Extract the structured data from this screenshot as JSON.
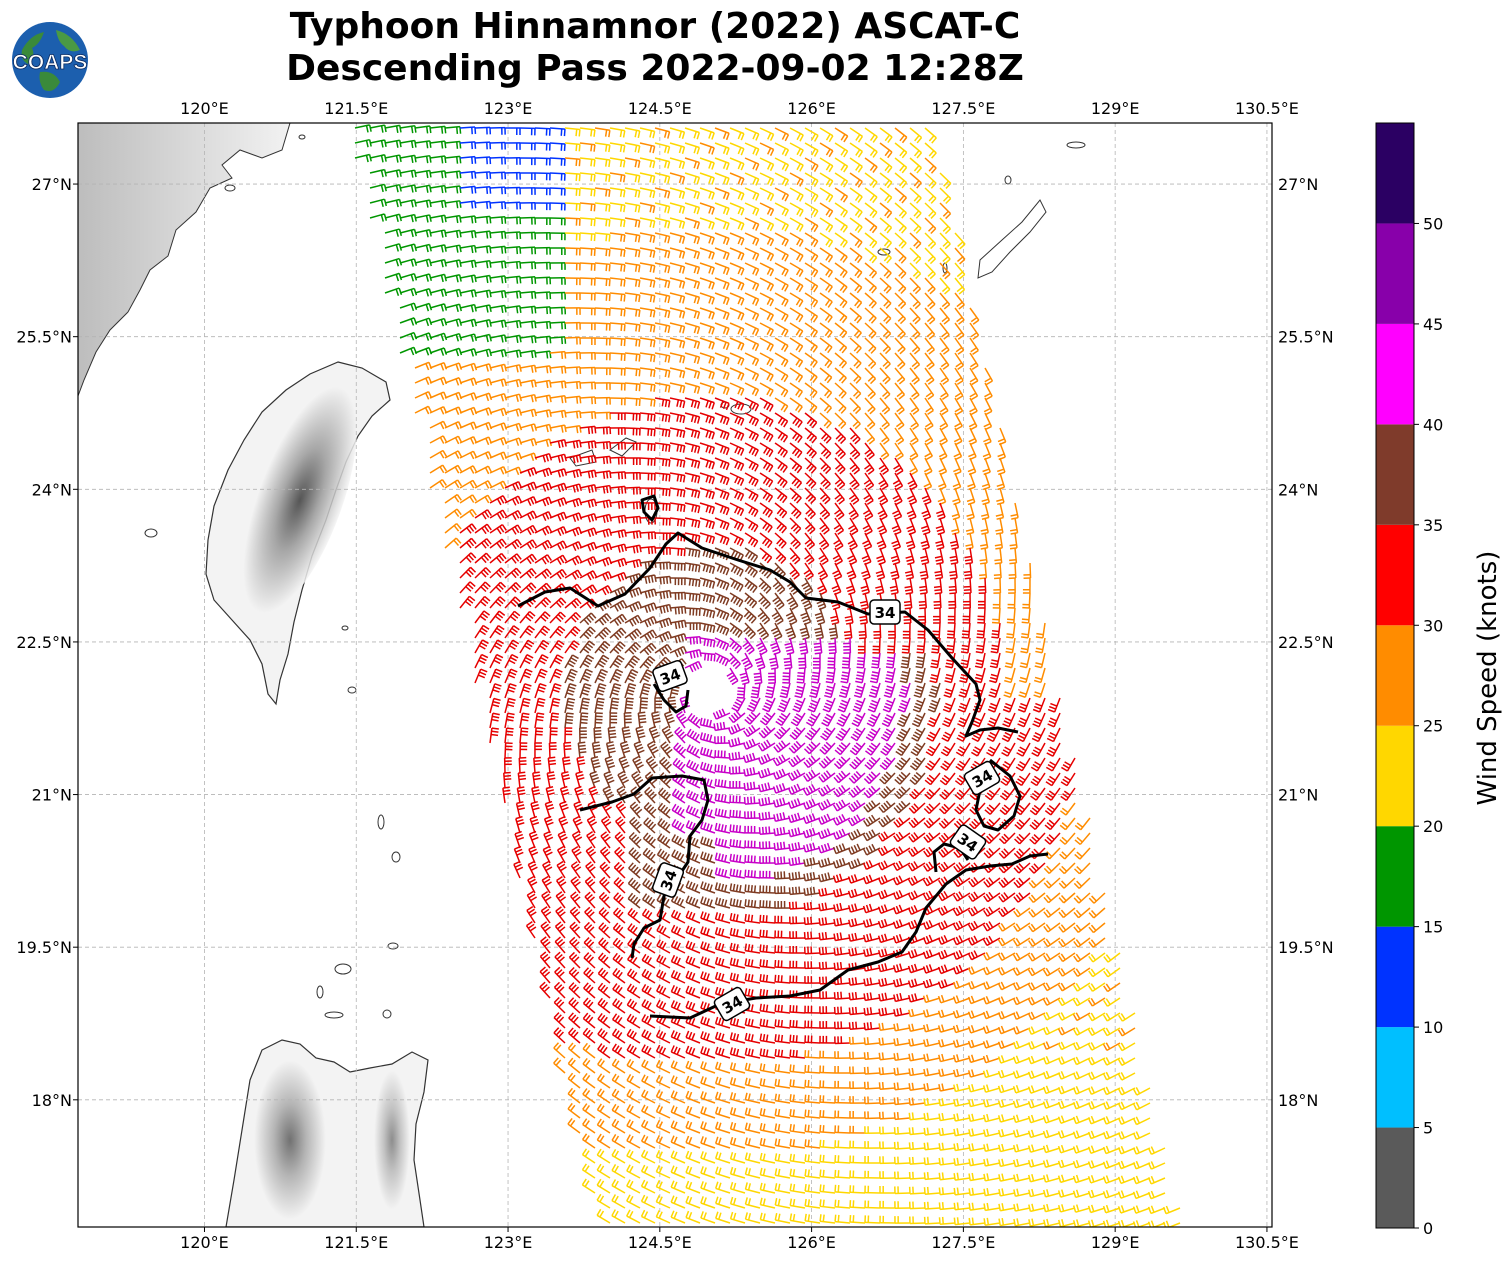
{
  "title_line1": "Typhoon Hinnamnor (2022) ASCAT-C",
  "title_line2": "Descending Pass 2022-09-02 12:28Z",
  "logo_text": "COAPS",
  "map": {
    "lon_range": [
      118.75,
      130.55
    ],
    "lat_range": [
      16.75,
      27.6
    ],
    "lon_ticks": [
      "120°E",
      "121.5°E",
      "123°E",
      "124.5°E",
      "126°E",
      "127.5°E",
      "129°E",
      "130.5°E"
    ],
    "lat_ticks": [
      "27°N",
      "25.5°N",
      "24°N",
      "22.5°N",
      "21°N",
      "19.5°N",
      "18°N"
    ],
    "grid": true,
    "contour_value": "34",
    "contour_labels": [
      "34",
      "34",
      "34",
      "34",
      "34",
      "34"
    ],
    "storm_center": {
      "lon": 125.0,
      "lat": 22.0
    },
    "barb_colors": {
      "yellow": "#ffd700",
      "orange": "#ff8c00",
      "green": "#009600",
      "blue": "#0033ff",
      "red": "#e60000",
      "brown": "#7f3b22",
      "purple": "#c800c8"
    }
  },
  "colorbar": {
    "label": "Wind Speed (knots)",
    "tick_labels": [
      "0",
      "5",
      "10",
      "15",
      "20",
      "25",
      "30",
      "35",
      "40",
      "45",
      "50"
    ],
    "bins": [
      {
        "min": 0,
        "max": 5,
        "color": "#5a5a5a"
      },
      {
        "min": 5,
        "max": 10,
        "color": "#00bfff"
      },
      {
        "min": 10,
        "max": 15,
        "color": "#0033ff"
      },
      {
        "min": 15,
        "max": 20,
        "color": "#009600"
      },
      {
        "min": 20,
        "max": 25,
        "color": "#ffd700"
      },
      {
        "min": 25,
        "max": 30,
        "color": "#ff8c00"
      },
      {
        "min": 30,
        "max": 35,
        "color": "#ff0000"
      },
      {
        "min": 35,
        "max": 40,
        "color": "#7f3b2b"
      },
      {
        "min": 40,
        "max": 45,
        "color": "#ff00ff"
      },
      {
        "min": 45,
        "max": 50,
        "color": "#8800aa"
      },
      {
        "min": 50,
        "max": 55,
        "color": "#2b0063"
      }
    ]
  }
}
